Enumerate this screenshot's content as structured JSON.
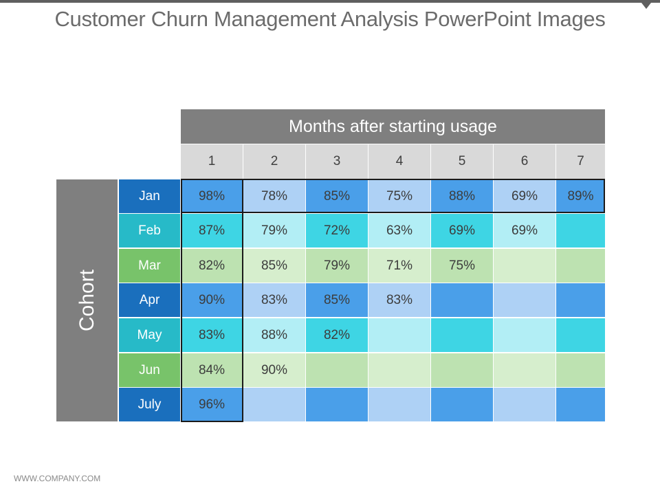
{
  "title": "Customer Churn Management Analysis PowerPoint Images",
  "footer": "WWW.COMPANY.COM",
  "chart_data": {
    "type": "table",
    "column_header": "Months after starting usage",
    "row_header": "Cohort",
    "columns": [
      "1",
      "2",
      "3",
      "4",
      "5",
      "6",
      "7"
    ],
    "rows": [
      {
        "label": "Jan",
        "values": [
          "98%",
          "78%",
          "85%",
          "75%",
          "88%",
          "69%",
          "89%"
        ]
      },
      {
        "label": "Feb",
        "values": [
          "87%",
          "79%",
          "72%",
          "63%",
          "69%",
          "69%",
          ""
        ]
      },
      {
        "label": "Mar",
        "values": [
          "82%",
          "85%",
          "79%",
          "71%",
          "75%",
          "",
          ""
        ]
      },
      {
        "label": "Apr",
        "values": [
          "90%",
          "83%",
          "85%",
          "83%",
          "",
          "",
          ""
        ]
      },
      {
        "label": "May",
        "values": [
          "83%",
          "88%",
          "82%",
          "",
          "",
          "",
          ""
        ]
      },
      {
        "label": "Jun",
        "values": [
          "84%",
          "90%",
          "",
          "",
          "",
          "",
          ""
        ]
      },
      {
        "label": "July",
        "values": [
          "96%",
          "",
          "",
          "",
          "",
          "",
          ""
        ]
      }
    ],
    "row_themes": [
      "blue",
      "cyan",
      "green",
      "blue",
      "cyan",
      "green",
      "blue"
    ],
    "themes": {
      "blue": {
        "label": "#1a6fbd",
        "dark": "#4a9fe9",
        "light": "#aed1f5"
      },
      "cyan": {
        "label": "#27bac8",
        "dark": "#3ed5e4",
        "light": "#b2eef5"
      },
      "green": {
        "label": "#78c36a",
        "dark": "#bde2b1",
        "light": "#d6eecd"
      }
    },
    "header_bg": "#7f7f7f",
    "colhead_bg": "#d9d9d9"
  }
}
